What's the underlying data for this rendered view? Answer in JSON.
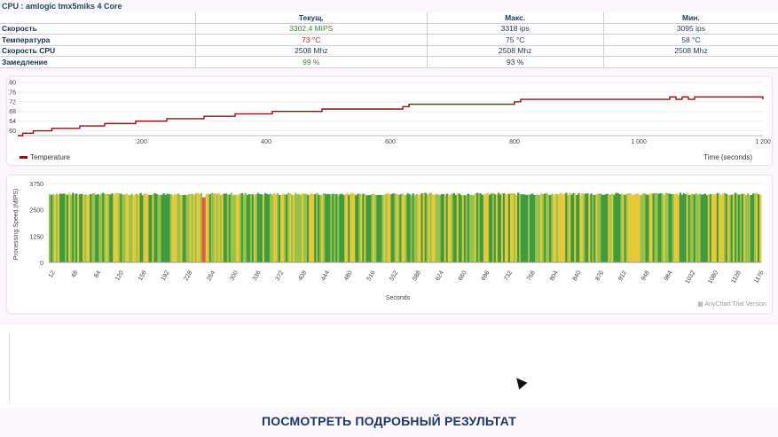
{
  "header": {
    "title": "CPU : amlogic tmx5miks 4 Core"
  },
  "stats": {
    "columns": [
      "Текущ.",
      "Макс.",
      "Мин."
    ],
    "rows": [
      {
        "label": "Скорость",
        "values": [
          "3302.4 MIPS",
          "3318 ips",
          "3095 ips"
        ],
        "current_color": "green"
      },
      {
        "label": "Температура",
        "values": [
          "73 °C",
          "75 °C",
          "58 °C"
        ],
        "current_color": "red"
      },
      {
        "label": "Скорость CPU",
        "values": [
          "2508 Mhz",
          "2508 Mhz",
          "2508 Mhz"
        ],
        "current_color": "default"
      },
      {
        "label": "Замедление",
        "values": [
          "99 %",
          "93 %",
          ""
        ],
        "current_color": "green"
      }
    ]
  },
  "chart_data": [
    {
      "type": "line",
      "legend": [
        "Temperature"
      ],
      "legend_position": "bottom-left",
      "xlabel": "Time (seconds)",
      "ylabel": "",
      "xlim": [
        0,
        1200
      ],
      "ylim": [
        58,
        80
      ],
      "x_ticks": [
        "200",
        "400",
        "600",
        "800",
        "1 000",
        "1 200"
      ],
      "x_tick_values": [
        200,
        400,
        600,
        800,
        1000,
        1200
      ],
      "y_ticks": [
        "60",
        "64",
        "68",
        "72",
        "76",
        "80"
      ],
      "y_tick_values": [
        60,
        64,
        68,
        72,
        76,
        80
      ],
      "color": "#8b1414",
      "series": [
        {
          "name": "Temperature",
          "x": [
            0,
            8,
            25,
            55,
            100,
            140,
            190,
            240,
            300,
            350,
            410,
            490,
            620,
            630,
            800,
            810,
            1040,
            1050,
            1060,
            1070,
            1080,
            1090,
            1100,
            1195,
            1200
          ],
          "y": [
            58,
            59,
            60,
            61,
            62,
            63,
            64,
            65,
            66,
            67,
            68,
            69,
            70,
            71,
            72,
            73,
            73,
            74,
            73,
            74,
            73,
            74,
            74,
            74,
            73
          ]
        }
      ]
    },
    {
      "type": "bar",
      "xlabel": "Seconds",
      "ylabel": "Processing Speed (MIPS)",
      "ylim": [
        0,
        3750
      ],
      "y_ticks": [
        "3750",
        "2500",
        "1250",
        "0"
      ],
      "y_tick_values": [
        3750,
        2500,
        1250,
        0
      ],
      "categories": [
        "12",
        "48",
        "84",
        "120",
        "156",
        "192",
        "228",
        "264",
        "300",
        "336",
        "372",
        "408",
        "444",
        "480",
        "516",
        "552",
        "588",
        "624",
        "660",
        "696",
        "732",
        "768",
        "804",
        "840",
        "876",
        "912",
        "948",
        "984",
        "1032",
        "1080",
        "1128",
        "1176"
      ],
      "typical_value": 3250,
      "min_value": 3095,
      "max_value": 3318,
      "colors": {
        "high": "#3f9b3f",
        "mid": "#98c24a",
        "low": "#e6c93b",
        "min": "#e25a4a"
      },
      "min_bar_at_second": 264
    }
  ],
  "credit": "AnyChart Trial Version",
  "footer": {
    "button_label": "ПОСМОТРЕТЬ ПОДРОБНЫЙ РЕЗУЛЬТАТ"
  }
}
